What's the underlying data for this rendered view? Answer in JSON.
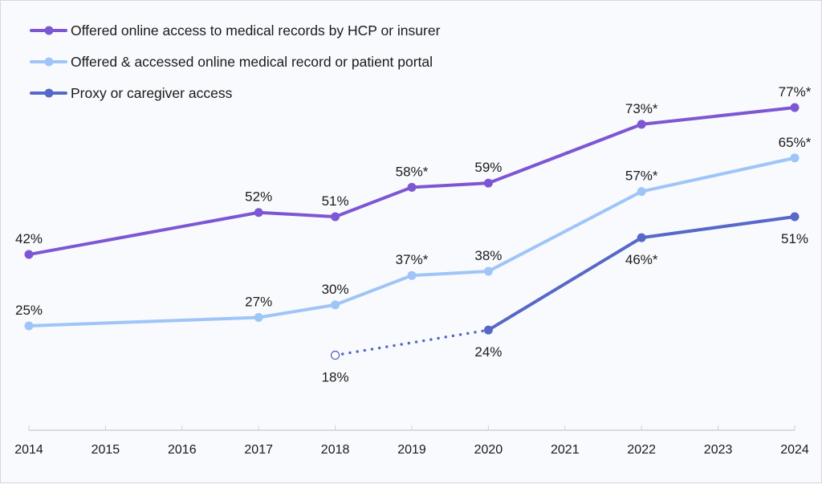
{
  "chart_data": {
    "type": "line",
    "title": "",
    "xlabel": "",
    "ylabel": "",
    "x": [
      2014,
      2015,
      2016,
      2017,
      2018,
      2019,
      2020,
      2021,
      2022,
      2023,
      2024
    ],
    "x_tick_labels": [
      "2014",
      "2015",
      "2016",
      "2017",
      "2018",
      "2019",
      "2020",
      "2021",
      "2022",
      "2023",
      "2024"
    ],
    "ylim": [
      0,
      100
    ],
    "grid": false,
    "legend_position": "top-left",
    "series": [
      {
        "name": "Offered online access to medical records by HCP or insurer",
        "color": "#7d57d3",
        "points": [
          {
            "x": 2014,
            "y": 42,
            "label": "42%",
            "pos": "above"
          },
          {
            "x": 2017,
            "y": 52,
            "label": "52%",
            "pos": "above"
          },
          {
            "x": 2018,
            "y": 51,
            "label": "51%",
            "pos": "above"
          },
          {
            "x": 2019,
            "y": 58,
            "label": "58%*",
            "pos": "above"
          },
          {
            "x": 2020,
            "y": 59,
            "label": "59%",
            "pos": "above"
          },
          {
            "x": 2022,
            "y": 73,
            "label": "73%*",
            "pos": "above"
          },
          {
            "x": 2024,
            "y": 77,
            "label": "77%*",
            "pos": "above"
          }
        ]
      },
      {
        "name": "Offered & accessed online medical record or patient portal",
        "color": "#9fc5f8",
        "points": [
          {
            "x": 2014,
            "y": 25,
            "label": "25%",
            "pos": "above"
          },
          {
            "x": 2017,
            "y": 27,
            "label": "27%",
            "pos": "above"
          },
          {
            "x": 2018,
            "y": 30,
            "label": "30%",
            "pos": "above"
          },
          {
            "x": 2019,
            "y": 37,
            "label": "37%*",
            "pos": "above"
          },
          {
            "x": 2020,
            "y": 38,
            "label": "38%",
            "pos": "above"
          },
          {
            "x": 2022,
            "y": 57,
            "label": "57%*",
            "pos": "above"
          },
          {
            "x": 2024,
            "y": 65,
            "label": "65%*",
            "pos": "above"
          }
        ]
      },
      {
        "name": "Proxy or caregiver access",
        "color": "#5668c8",
        "points": [
          {
            "x": 2018,
            "y": 18,
            "label": "18%",
            "pos": "below",
            "hollow": true
          },
          {
            "x": 2020,
            "y": 24,
            "label": "24%",
            "pos": "below"
          },
          {
            "x": 2022,
            "y": 46,
            "label": "46%*",
            "pos": "below"
          },
          {
            "x": 2024,
            "y": 51,
            "label": "51%",
            "pos": "below"
          }
        ],
        "dotted_segments": [
          [
            2018,
            2020
          ]
        ]
      }
    ]
  }
}
